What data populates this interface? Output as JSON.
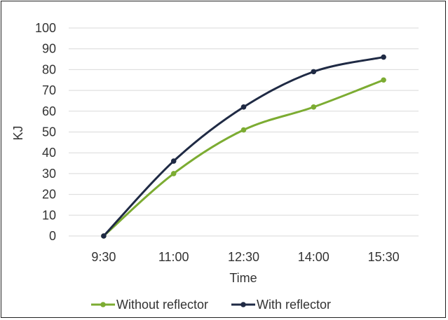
{
  "chart_data": {
    "type": "line",
    "categories": [
      "9:30",
      "11:00",
      "12:30",
      "14:00",
      "15:30"
    ],
    "series": [
      {
        "name": "Without reflector",
        "values": [
          0,
          30,
          51,
          62,
          75
        ],
        "color": "#7cac32"
      },
      {
        "name": "With reflector",
        "values": [
          0,
          36,
          62,
          79,
          86
        ],
        "color": "#1f2a44"
      }
    ],
    "title": "",
    "xlabel": "Time",
    "ylabel": "KJ",
    "ylim": [
      0,
      100
    ],
    "yticks": [
      0,
      10,
      20,
      30,
      40,
      50,
      60,
      70,
      80,
      90,
      100
    ],
    "grid": true,
    "legend_position": "bottom",
    "smooth": true
  }
}
